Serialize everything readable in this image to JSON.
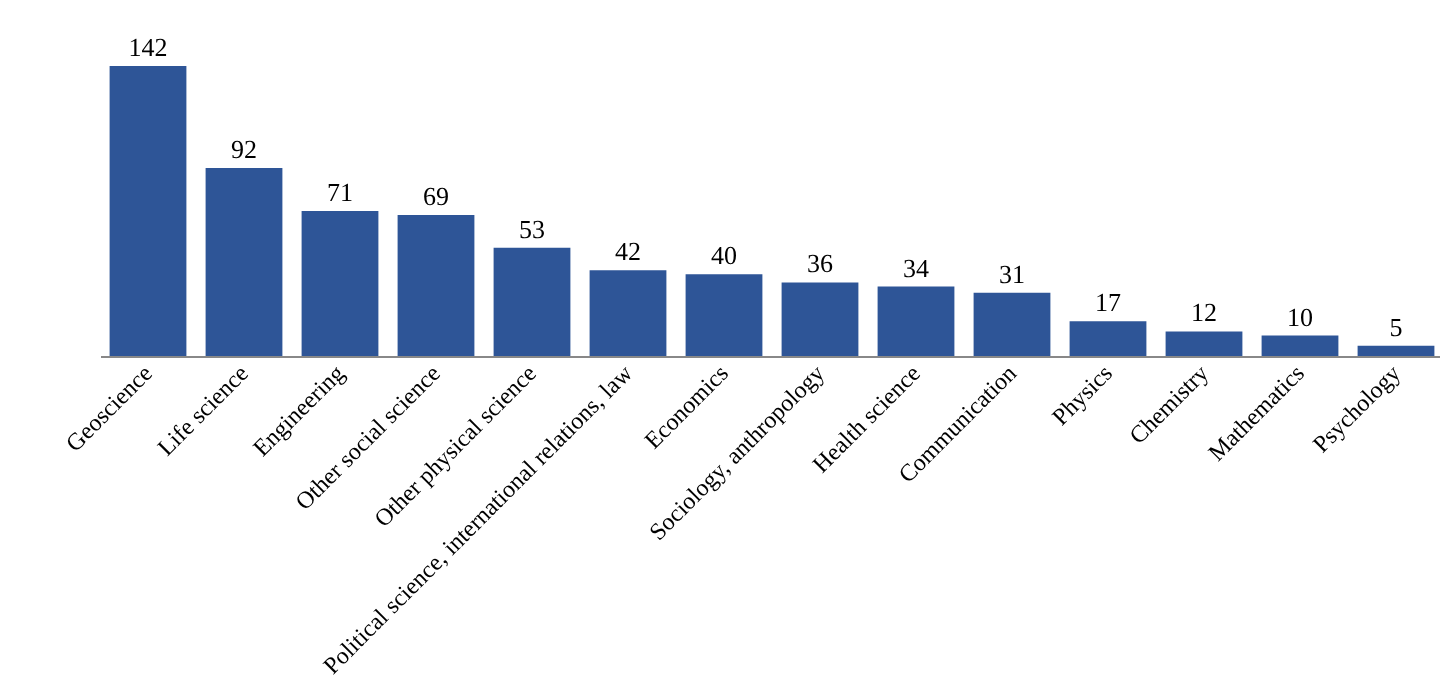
{
  "chart_data": {
    "type": "bar",
    "categories": [
      "Geoscience",
      "Life science",
      "Engineering",
      "Other social science",
      "Other physical science",
      "Political science, international relations, law",
      "Economics",
      "Sociology, anthropology",
      "Health science",
      "Communication",
      "Physics",
      "Chemistry",
      "Mathematics",
      "Psychology"
    ],
    "values": [
      142,
      92,
      71,
      69,
      53,
      42,
      40,
      36,
      34,
      31,
      17,
      12,
      10,
      5
    ],
    "color": "#2e5597",
    "data_labels": true
  }
}
